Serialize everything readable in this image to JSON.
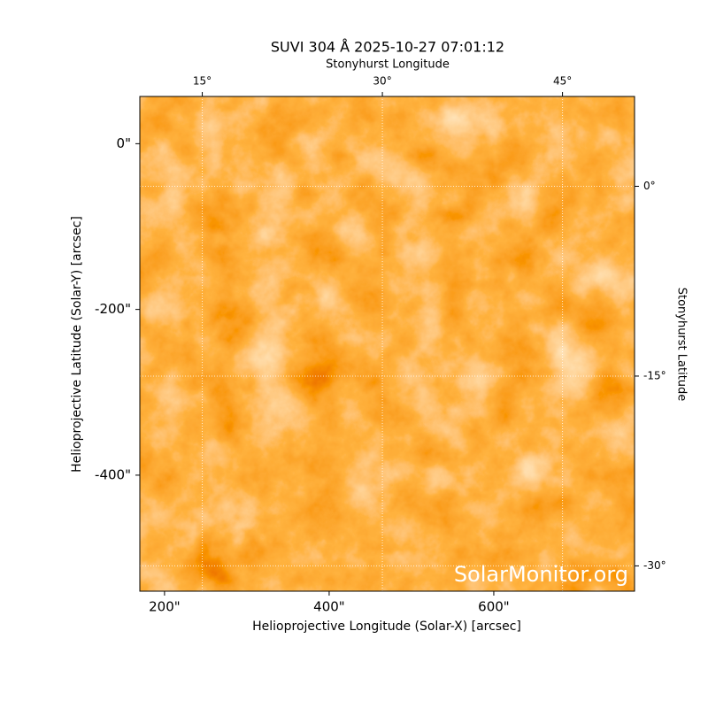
{
  "chart_data": {
    "type": "image",
    "title": "SUVI 304 Å 2025-10-27 07:01:12",
    "xlabel": "Helioprojective Longitude (Solar-X) [arcsec]",
    "ylabel": "Helioprojective Latitude (Solar-Y) [arcsec]",
    "x2label": "Stonyhurst Longitude",
    "y2label": "Stonyhurst Latitude",
    "watermark": "SolarMonitor.org",
    "xlim": [
      170,
      771
    ],
    "ylim": [
      -540,
      57
    ],
    "xticks": [
      {
        "value": 200,
        "label": "200\""
      },
      {
        "value": 400,
        "label": "400\""
      },
      {
        "value": 600,
        "label": "600\""
      }
    ],
    "yticks": [
      {
        "value": 0,
        "label": "0\""
      },
      {
        "value": -200,
        "label": "-200\""
      },
      {
        "value": -400,
        "label": "-400\""
      }
    ],
    "x2lim": [
      9.8,
      51
    ],
    "x2ticks": [
      {
        "value": 15,
        "label": "15°"
      },
      {
        "value": 30,
        "label": "30°"
      },
      {
        "value": 45,
        "label": "45°"
      }
    ],
    "y2lim": [
      -32,
      7.1
    ],
    "y2ticks": [
      {
        "value": 0,
        "label": "0°"
      },
      {
        "value": -15,
        "label": "-15°"
      },
      {
        "value": -30,
        "label": "-30°"
      }
    ],
    "grid": true
  }
}
